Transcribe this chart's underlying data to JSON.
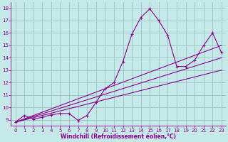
{
  "background_color": "#c5e8e8",
  "grid_color": "#a0c8c8",
  "line_color": "#8b008b",
  "xlim": [
    -0.5,
    23.5
  ],
  "ylim": [
    8.5,
    18.5
  ],
  "xticks": [
    0,
    1,
    2,
    3,
    4,
    5,
    6,
    7,
    8,
    9,
    10,
    11,
    12,
    13,
    14,
    15,
    16,
    17,
    18,
    19,
    20,
    21,
    22,
    23
  ],
  "yticks": [
    9,
    10,
    11,
    12,
    13,
    14,
    15,
    16,
    17,
    18
  ],
  "xlabel": "Windchill (Refroidissement éolien,°C)",
  "curve_x": [
    0,
    1,
    2,
    3,
    4,
    5,
    6,
    7,
    8,
    9,
    10,
    11,
    12,
    13,
    14,
    15,
    16,
    17,
    18,
    19,
    20,
    21,
    22,
    23
  ],
  "curve_y": [
    8.8,
    9.35,
    9.05,
    9.2,
    9.4,
    9.5,
    9.5,
    8.95,
    9.35,
    10.4,
    11.5,
    12.0,
    13.7,
    15.9,
    17.25,
    17.95,
    17.0,
    15.8,
    13.3,
    13.3,
    13.8,
    15.0,
    16.0,
    14.4
  ],
  "trend_lines": [
    {
      "x0": 0,
      "y0": 8.8,
      "x1": 23,
      "y1": 15.0
    },
    {
      "x0": 0,
      "y0": 8.8,
      "x1": 23,
      "y1": 14.0
    },
    {
      "x0": 0,
      "y0": 8.8,
      "x1": 23,
      "y1": 13.0
    }
  ],
  "xlabel_fontsize": 5.5,
  "tick_fontsize": 5.0
}
